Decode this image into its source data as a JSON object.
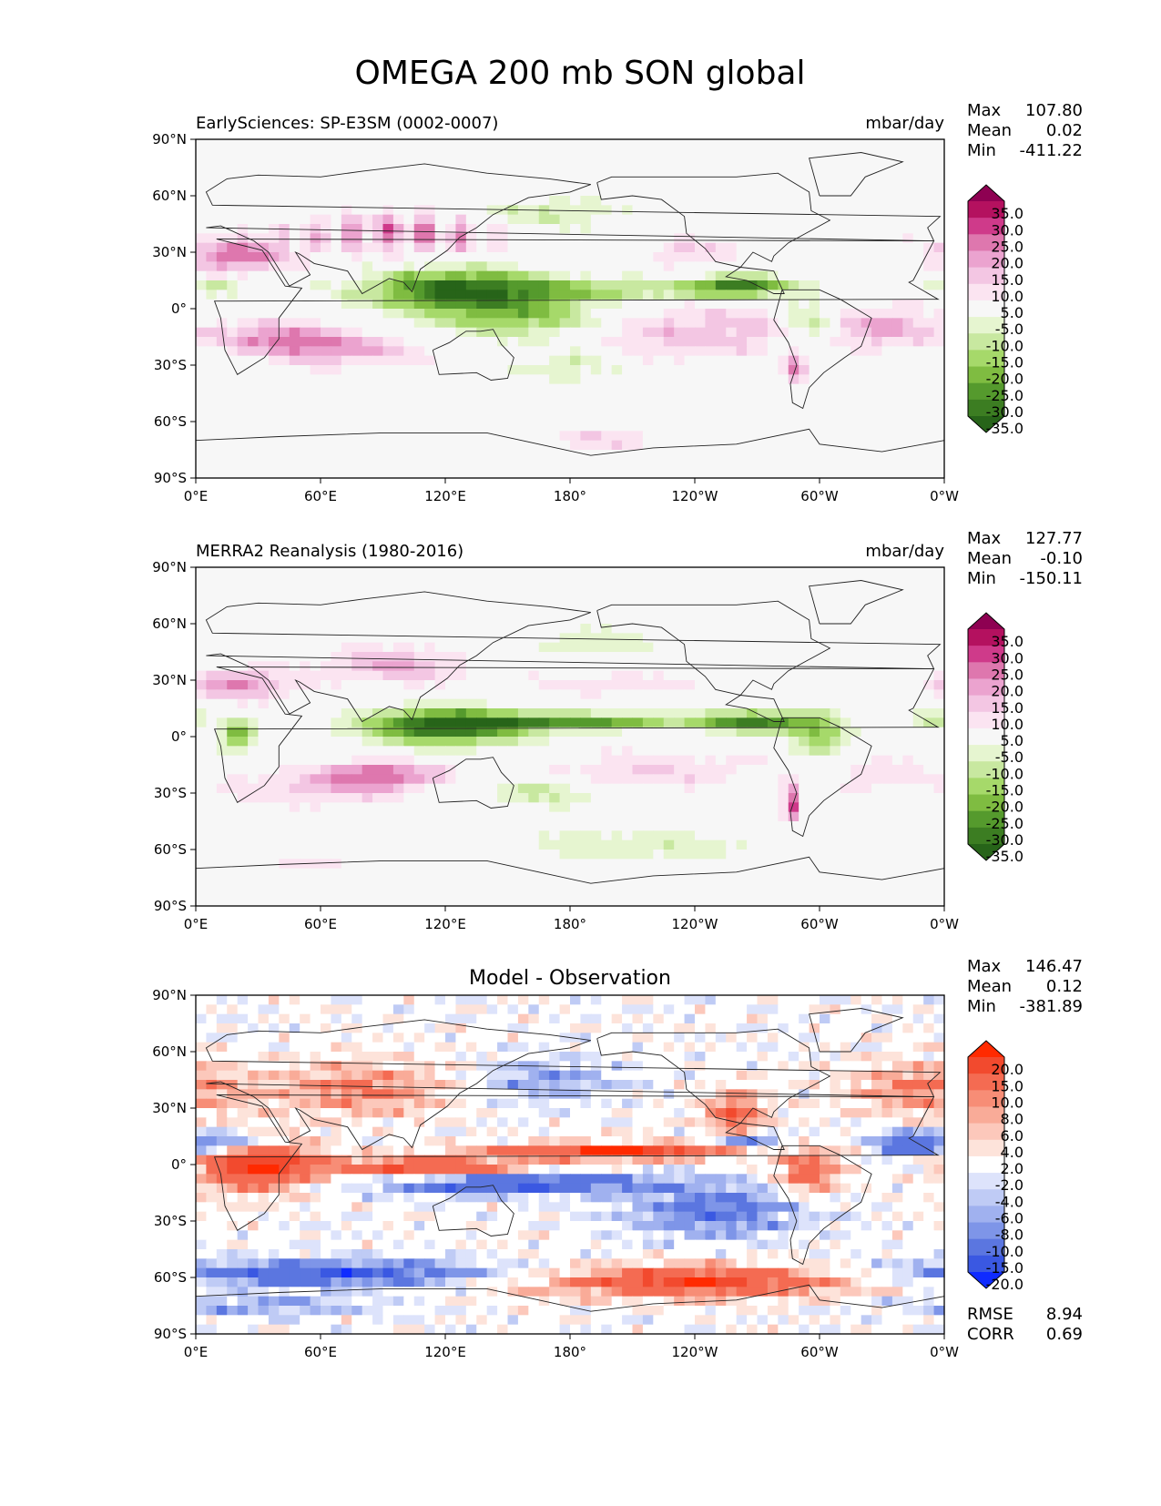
{
  "figure_title": "OMEGA 200 mb SON global",
  "chart_data": [
    {
      "type": "heatmap",
      "title": "EarlySciences: SP-E3SM (0002-0007)",
      "units": "mbar/day",
      "stats": {
        "max_label": "Max",
        "max": "107.80",
        "mean_label": "Mean",
        "mean": "0.02",
        "min_label": "Min",
        "min": "-411.22"
      },
      "x_ticks": [
        "0°E",
        "60°E",
        "120°E",
        "180°",
        "120°W",
        "60°W",
        "0°W"
      ],
      "y_ticks": [
        "90°N",
        "60°N",
        "30°N",
        "0°",
        "30°S",
        "60°S",
        "90°S"
      ],
      "xlim": [
        0,
        360
      ],
      "ylim": [
        -90,
        90
      ],
      "colorbar": {
        "labels": [
          "35.0",
          "30.0",
          "25.0",
          "20.0",
          "15.0",
          "10.0",
          "5.0",
          "-5.0",
          "-10.0",
          "-15.0",
          "-20.0",
          "-25.0",
          "-30.0",
          "-35.0"
        ],
        "colors": [
          "#8e0152",
          "#b4115f",
          "#cf3a8a",
          "#de77ae",
          "#eba3cf",
          "#f3c6e3",
          "#fbe4f1",
          "#f7f7f7",
          "#e6f5d0",
          "#c8e8a0",
          "#a6d96a",
          "#7fbc41",
          "#559a2d",
          "#3c7d22",
          "#276419"
        ]
      }
    },
    {
      "type": "heatmap",
      "title": "MERRA2 Reanalysis (1980-2016)",
      "units": "mbar/day",
      "stats": {
        "max_label": "Max",
        "max": "127.77",
        "mean_label": "Mean",
        "mean": "-0.10",
        "min_label": "Min",
        "min": "-150.11"
      },
      "x_ticks": [
        "0°E",
        "60°E",
        "120°E",
        "180°",
        "120°W",
        "60°W",
        "0°W"
      ],
      "y_ticks": [
        "90°N",
        "60°N",
        "30°N",
        "0°",
        "30°S",
        "60°S",
        "90°S"
      ],
      "xlim": [
        0,
        360
      ],
      "ylim": [
        -90,
        90
      ],
      "colorbar": {
        "labels": [
          "35.0",
          "30.0",
          "25.0",
          "20.0",
          "15.0",
          "10.0",
          "5.0",
          "-5.0",
          "-10.0",
          "-15.0",
          "-20.0",
          "-25.0",
          "-30.0",
          "-35.0"
        ],
        "colors": [
          "#8e0152",
          "#b4115f",
          "#cf3a8a",
          "#de77ae",
          "#eba3cf",
          "#f3c6e3",
          "#fbe4f1",
          "#f7f7f7",
          "#e6f5d0",
          "#c8e8a0",
          "#a6d96a",
          "#7fbc41",
          "#559a2d",
          "#3c7d22",
          "#276419"
        ]
      }
    },
    {
      "type": "heatmap",
      "title": "Model - Observation",
      "units": "",
      "stats": {
        "max_label": "Max",
        "max": "146.47",
        "mean_label": "Mean",
        "mean": "0.12",
        "min_label": "Min",
        "min": "-381.89"
      },
      "metrics": {
        "rmse_label": "RMSE",
        "rmse": "8.94",
        "corr_label": "CORR",
        "corr": "0.69"
      },
      "x_ticks": [
        "0°E",
        "60°E",
        "120°E",
        "180°",
        "120°W",
        "60°W",
        "0°W"
      ],
      "y_ticks": [
        "90°N",
        "60°N",
        "30°N",
        "0°",
        "30°S",
        "60°S",
        "90°S"
      ],
      "xlim": [
        0,
        360
      ],
      "ylim": [
        -90,
        90
      ],
      "colorbar": {
        "labels": [
          "20.0",
          "15.0",
          "10.0",
          "8.0",
          "6.0",
          "4.0",
          "2.0",
          "-2.0",
          "-4.0",
          "-6.0",
          "-8.0",
          "-10.0",
          "-15.0",
          "-20.0"
        ],
        "colors": [
          "#ff2a00",
          "#f24a2e",
          "#f46b52",
          "#f78d76",
          "#f9ab98",
          "#fcc8bb",
          "#fde3da",
          "#ffffff",
          "#dde3fb",
          "#bfcbf5",
          "#a0b1ef",
          "#7e95e8",
          "#5b76e0",
          "#3a58e2",
          "#0f2bff"
        ]
      }
    }
  ]
}
